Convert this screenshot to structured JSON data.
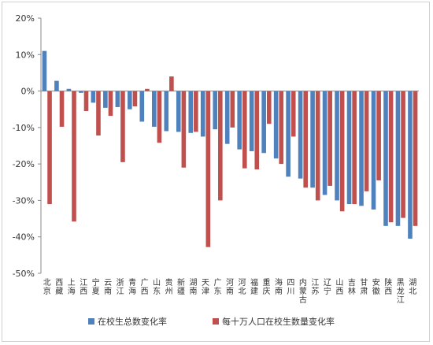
{
  "chart_data": {
    "type": "bar",
    "categories": [
      "北京",
      "西藏",
      "上海",
      "江西",
      "宁夏",
      "云南",
      "浙江",
      "青海",
      "广西",
      "山东",
      "贵州",
      "新疆",
      "湖南",
      "天津",
      "广东",
      "河南",
      "河北",
      "福建",
      "重庆",
      "海南",
      "四川",
      "内蒙古",
      "江苏",
      "辽宁",
      "山西",
      "吉林",
      "甘肃",
      "安徽",
      "陕西",
      "黑龙江",
      "湖北"
    ],
    "series": [
      {
        "name": "在校生总数变化率",
        "color": "#4f81bd",
        "values": [
          11,
          2.8,
          0.6,
          -0.5,
          -3.2,
          -4.6,
          -4.4,
          -5.0,
          -8.4,
          -9.8,
          -11.0,
          -11.2,
          -11.5,
          -12.5,
          -10.5,
          -14.5,
          -16.0,
          -16.5,
          -17.0,
          -18.5,
          -23.5,
          -24.0,
          -26.5,
          -28.5,
          -30.0,
          -31.0,
          -31.5,
          -32.5,
          -37.0,
          -37.0,
          -40.5
        ]
      },
      {
        "name": "每十万人口在校生数量变化率",
        "color": "#c0504d",
        "values": [
          -31.0,
          -9.8,
          -35.8,
          -5.5,
          -12.2,
          -6.8,
          -19.5,
          -4.2,
          0.6,
          -14.2,
          4.0,
          -21.0,
          -11.2,
          -42.8,
          -30.0,
          -10.0,
          -21.2,
          -21.5,
          -9.0,
          -20.0,
          -12.5,
          -26.5,
          -30.0,
          -26.0,
          -33.0,
          -31.0,
          -27.5,
          -24.5,
          -36.0,
          -34.8,
          -37.0
        ]
      }
    ],
    "y_ticks": [
      "20%",
      "10%",
      "0%",
      "-10%",
      "-20%",
      "-30%",
      "-40%",
      "-50%"
    ],
    "ylim": [
      -50,
      20
    ],
    "grid": false,
    "legend_position": "bottom"
  }
}
